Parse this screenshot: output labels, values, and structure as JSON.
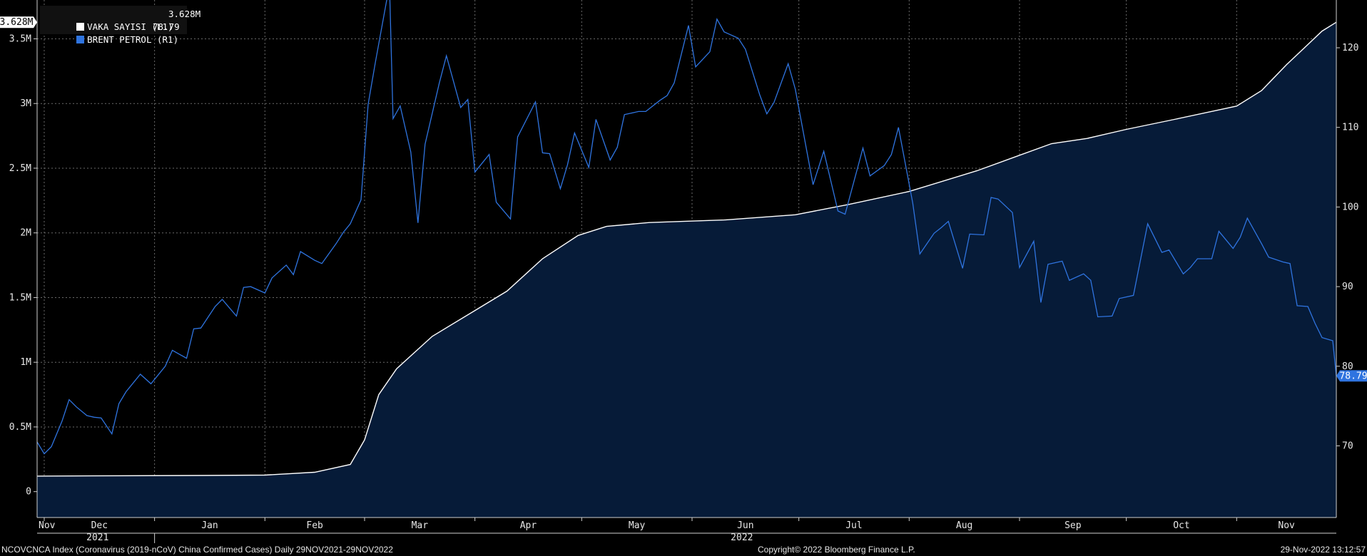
{
  "legend": [
    {
      "label": "VAKA SAYISI (L1)",
      "value": "3.628M",
      "color": "#ffffff"
    },
    {
      "label": "BRENT PETROL (R1)",
      "value": "78.79",
      "color": "#2f74e0"
    }
  ],
  "last_value_tags": {
    "left": "3.628M",
    "right": "78.79"
  },
  "footer": {
    "left": "NCOVCNCA Index (Coronavirus (2019-nCoV) China Confirmed Cases)  Daily 29NOV2021-29NOV2022",
    "center": "Copyright© 2022 Bloomberg Finance L.P.",
    "right": "29-Nov-2022 13:12:57"
  },
  "colors": {
    "background": "#000000",
    "cases_line": "#ffffff",
    "cases_fill": "#061b38",
    "brent_line": "#2f74e0",
    "grid": "#6a6a6a"
  },
  "chart_data": {
    "type": "line",
    "title": "",
    "x_range": [
      "2021-11-29",
      "2022-11-29"
    ],
    "x_tick_labels": [
      "Nov",
      "Dec",
      "Jan",
      "Feb",
      "Mar",
      "Apr",
      "May",
      "Jun",
      "Jul",
      "Aug",
      "Sep",
      "Oct",
      "Nov"
    ],
    "year_labels": [
      "2021",
      "2022"
    ],
    "y_left": {
      "ticks": [
        "0",
        "0.5M",
        "1M",
        "1.5M",
        "2M",
        "2.5M",
        "3M",
        "3.5M"
      ],
      "range": [
        -200000,
        3800000
      ]
    },
    "y_right": {
      "ticks": [
        "70",
        "80",
        "90",
        "100",
        "110",
        "120"
      ],
      "range": [
        61,
        126
      ]
    },
    "grid": true,
    "legend_position": "top-left",
    "series": [
      {
        "name": "VAKA SAYISI (L1)",
        "axis": "left",
        "style": "area",
        "points": [
          [
            "2021-11-29",
            120000
          ],
          [
            "2022-01-15",
            125000
          ],
          [
            "2022-02-01",
            128000
          ],
          [
            "2022-02-15",
            150000
          ],
          [
            "2022-02-25",
            210000
          ],
          [
            "2022-03-01",
            400000
          ],
          [
            "2022-03-05",
            750000
          ],
          [
            "2022-03-10",
            950000
          ],
          [
            "2022-03-20",
            1200000
          ],
          [
            "2022-04-01",
            1400000
          ],
          [
            "2022-04-10",
            1550000
          ],
          [
            "2022-04-20",
            1800000
          ],
          [
            "2022-04-30",
            1980000
          ],
          [
            "2022-05-08",
            2050000
          ],
          [
            "2022-05-20",
            2080000
          ],
          [
            "2022-06-10",
            2100000
          ],
          [
            "2022-06-30",
            2140000
          ],
          [
            "2022-07-15",
            2220000
          ],
          [
            "2022-08-01",
            2320000
          ],
          [
            "2022-08-20",
            2480000
          ],
          [
            "2022-09-01",
            2600000
          ],
          [
            "2022-09-10",
            2690000
          ],
          [
            "2022-09-20",
            2730000
          ],
          [
            "2022-10-01",
            2800000
          ],
          [
            "2022-10-15",
            2880000
          ],
          [
            "2022-11-01",
            2980000
          ],
          [
            "2022-11-08",
            3100000
          ],
          [
            "2022-11-15",
            3300000
          ],
          [
            "2022-11-20",
            3430000
          ],
          [
            "2022-11-25",
            3560000
          ],
          [
            "2022-11-29",
            3628000
          ]
        ]
      },
      {
        "name": "BRENT PETROL (R1)",
        "axis": "right",
        "style": "line",
        "points": [
          [
            "2021-11-29",
            70.5
          ],
          [
            "2021-12-01",
            69.0
          ],
          [
            "2021-12-03",
            69.9
          ],
          [
            "2021-12-06",
            73.1
          ],
          [
            "2021-12-08",
            75.8
          ],
          [
            "2021-12-10",
            74.9
          ],
          [
            "2021-12-13",
            73.8
          ],
          [
            "2021-12-15",
            73.6
          ],
          [
            "2021-12-17",
            73.5
          ],
          [
            "2021-12-20",
            71.5
          ],
          [
            "2021-12-22",
            75.3
          ],
          [
            "2021-12-24",
            76.8
          ],
          [
            "2021-12-28",
            79.0
          ],
          [
            "2021-12-31",
            77.8
          ],
          [
            "2022-01-04",
            80.0
          ],
          [
            "2022-01-06",
            82.0
          ],
          [
            "2022-01-10",
            81.0
          ],
          [
            "2022-01-12",
            84.7
          ],
          [
            "2022-01-14",
            84.8
          ],
          [
            "2022-01-18",
            87.5
          ],
          [
            "2022-01-20",
            88.4
          ],
          [
            "2022-01-24",
            86.3
          ],
          [
            "2022-01-26",
            89.9
          ],
          [
            "2022-01-28",
            90.0
          ],
          [
            "2022-02-01",
            89.2
          ],
          [
            "2022-02-03",
            91.1
          ],
          [
            "2022-02-07",
            92.7
          ],
          [
            "2022-02-09",
            91.5
          ],
          [
            "2022-02-11",
            94.4
          ],
          [
            "2022-02-15",
            93.3
          ],
          [
            "2022-02-17",
            92.9
          ],
          [
            "2022-02-21",
            95.4
          ],
          [
            "2022-02-23",
            96.8
          ],
          [
            "2022-02-25",
            97.9
          ],
          [
            "2022-02-28",
            100.9
          ],
          [
            "2022-03-02",
            112.9
          ],
          [
            "2022-03-04",
            118.1
          ],
          [
            "2022-03-08",
            127.9
          ],
          [
            "2022-03-09",
            111.1
          ],
          [
            "2022-03-11",
            112.7
          ],
          [
            "2022-03-14",
            106.9
          ],
          [
            "2022-03-16",
            98.0
          ],
          [
            "2022-03-18",
            107.9
          ],
          [
            "2022-03-22",
            115.6
          ],
          [
            "2022-03-24",
            119.0
          ],
          [
            "2022-03-28",
            112.5
          ],
          [
            "2022-03-30",
            113.5
          ],
          [
            "2022-04-01",
            104.4
          ],
          [
            "2022-04-05",
            106.6
          ],
          [
            "2022-04-07",
            100.6
          ],
          [
            "2022-04-11",
            98.5
          ],
          [
            "2022-04-13",
            108.8
          ],
          [
            "2022-04-18",
            113.2
          ],
          [
            "2022-04-20",
            106.8
          ],
          [
            "2022-04-22",
            106.7
          ],
          [
            "2022-04-25",
            102.3
          ],
          [
            "2022-04-27",
            105.3
          ],
          [
            "2022-04-29",
            109.3
          ],
          [
            "2022-05-03",
            104.97
          ],
          [
            "2022-05-05",
            111.0
          ],
          [
            "2022-05-09",
            105.9
          ],
          [
            "2022-05-11",
            107.5
          ],
          [
            "2022-05-13",
            111.6
          ],
          [
            "2022-05-17",
            112.0
          ],
          [
            "2022-05-19",
            112.0
          ],
          [
            "2022-05-23",
            113.4
          ],
          [
            "2022-05-25",
            114.0
          ],
          [
            "2022-05-27",
            115.6
          ],
          [
            "2022-05-31",
            122.8
          ],
          [
            "2022-06-02",
            117.6
          ],
          [
            "2022-06-06",
            119.5
          ],
          [
            "2022-06-08",
            123.6
          ],
          [
            "2022-06-10",
            122.0
          ],
          [
            "2022-06-14",
            121.2
          ],
          [
            "2022-06-16",
            119.8
          ],
          [
            "2022-06-20",
            114.1
          ],
          [
            "2022-06-22",
            111.7
          ],
          [
            "2022-06-24",
            113.1
          ],
          [
            "2022-06-28",
            118.0
          ],
          [
            "2022-06-30",
            114.8
          ],
          [
            "2022-07-05",
            102.8
          ],
          [
            "2022-07-08",
            107.0
          ],
          [
            "2022-07-12",
            99.5
          ],
          [
            "2022-07-14",
            99.1
          ],
          [
            "2022-07-19",
            107.4
          ],
          [
            "2022-07-21",
            103.9
          ],
          [
            "2022-07-25",
            105.2
          ],
          [
            "2022-07-27",
            106.6
          ],
          [
            "2022-07-29",
            110.0
          ],
          [
            "2022-08-02",
            100.5
          ],
          [
            "2022-08-04",
            94.1
          ],
          [
            "2022-08-08",
            96.7
          ],
          [
            "2022-08-10",
            97.4
          ],
          [
            "2022-08-12",
            98.2
          ],
          [
            "2022-08-16",
            92.3
          ],
          [
            "2022-08-18",
            96.6
          ],
          [
            "2022-08-22",
            96.5
          ],
          [
            "2022-08-24",
            101.2
          ],
          [
            "2022-08-26",
            100.99
          ],
          [
            "2022-08-30",
            99.3
          ],
          [
            "2022-09-01",
            92.4
          ],
          [
            "2022-09-05",
            95.7
          ],
          [
            "2022-09-07",
            88.0
          ],
          [
            "2022-09-09",
            92.8
          ],
          [
            "2022-09-13",
            93.2
          ],
          [
            "2022-09-15",
            90.8
          ],
          [
            "2022-09-19",
            91.6
          ],
          [
            "2022-09-21",
            90.8
          ],
          [
            "2022-09-23",
            86.2
          ],
          [
            "2022-09-27",
            86.3
          ],
          [
            "2022-09-29",
            88.5
          ],
          [
            "2022-10-03",
            88.9
          ],
          [
            "2022-10-05",
            93.4
          ],
          [
            "2022-10-07",
            97.9
          ],
          [
            "2022-10-11",
            94.3
          ],
          [
            "2022-10-13",
            94.6
          ],
          [
            "2022-10-17",
            91.6
          ],
          [
            "2022-10-19",
            92.4
          ],
          [
            "2022-10-21",
            93.5
          ],
          [
            "2022-10-25",
            93.5
          ],
          [
            "2022-10-27",
            96.96
          ],
          [
            "2022-10-31",
            94.8
          ],
          [
            "2022-11-02",
            96.2
          ],
          [
            "2022-11-04",
            98.6
          ],
          [
            "2022-11-08",
            95.4
          ],
          [
            "2022-11-10",
            93.7
          ],
          [
            "2022-11-14",
            93.1
          ],
          [
            "2022-11-16",
            92.9
          ],
          [
            "2022-11-18",
            87.6
          ],
          [
            "2022-11-21",
            87.5
          ],
          [
            "2022-11-23",
            85.4
          ],
          [
            "2022-11-25",
            83.6
          ],
          [
            "2022-11-28",
            83.2
          ],
          [
            "2022-11-29",
            78.79
          ]
        ]
      }
    ]
  }
}
